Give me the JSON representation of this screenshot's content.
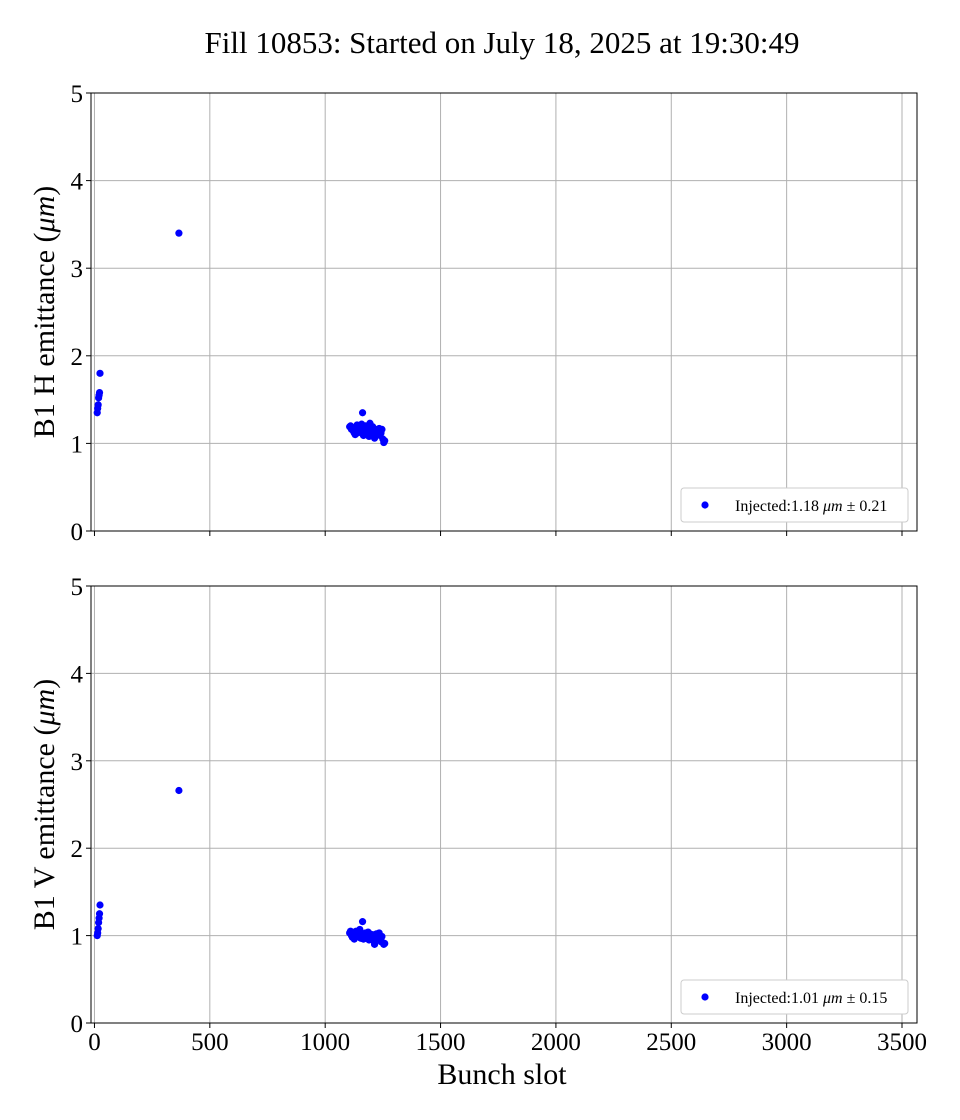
{
  "figure": {
    "title": "Fill 10853: Started on July 18, 2025 at 19:30:49",
    "xlabel": "Bunch slot"
  },
  "colors": {
    "marker": "#0000ff",
    "grid": "#b0b0b0",
    "axes": "#000000"
  },
  "chart_data": [
    {
      "type": "scatter",
      "title": "",
      "xlabel": "",
      "ylabel": "B1 H emittance (μm)",
      "xlim": [
        -15,
        3565
      ],
      "ylim": [
        0,
        5
      ],
      "xticks": [
        0,
        500,
        1000,
        1500,
        2000,
        2500,
        3000,
        3500
      ],
      "yticks": [
        0,
        1,
        2,
        3,
        4,
        5
      ],
      "grid": true,
      "legend_position": "lower-right",
      "series": [
        {
          "name": "Injected:1.18 μm ± 0.21",
          "x": [
            12,
            14,
            16,
            18,
            20,
            22,
            24,
            366,
            1106,
            1110,
            1114,
            1118,
            1122,
            1126,
            1130,
            1134,
            1138,
            1142,
            1146,
            1150,
            1154,
            1158,
            1162,
            1166,
            1170,
            1174,
            1178,
            1182,
            1186,
            1190,
            1194,
            1198,
            1202,
            1206,
            1210,
            1214,
            1218,
            1222,
            1226,
            1230,
            1234,
            1238,
            1242,
            1246,
            1250,
            1254,
            1258
          ],
          "y": [
            1.35,
            1.4,
            1.44,
            1.52,
            1.55,
            1.58,
            1.8,
            3.4,
            1.19,
            1.2,
            1.16,
            1.18,
            1.14,
            1.12,
            1.1,
            1.17,
            1.21,
            1.12,
            1.15,
            1.19,
            1.13,
            1.22,
            1.35,
            1.09,
            1.16,
            1.2,
            1.12,
            1.14,
            1.18,
            1.08,
            1.23,
            1.15,
            1.13,
            1.19,
            1.11,
            1.06,
            1.16,
            1.12,
            1.14,
            1.1,
            1.17,
            1.09,
            1.12,
            1.16,
            1.05,
            1.01,
            1.03
          ]
        }
      ]
    },
    {
      "type": "scatter",
      "title": "",
      "xlabel": "Bunch slot",
      "ylabel": "B1 V emittance (μm)",
      "xlim": [
        -15,
        3565
      ],
      "ylim": [
        0,
        5
      ],
      "xticks": [
        0,
        500,
        1000,
        1500,
        2000,
        2500,
        3000,
        3500
      ],
      "yticks": [
        0,
        1,
        2,
        3,
        4,
        5
      ],
      "grid": true,
      "legend_position": "lower-right",
      "series": [
        {
          "name": "Injected:1.01 μm ± 0.15",
          "x": [
            12,
            14,
            16,
            18,
            20,
            22,
            24,
            366,
            1106,
            1110,
            1114,
            1118,
            1122,
            1126,
            1130,
            1134,
            1138,
            1142,
            1146,
            1150,
            1154,
            1158,
            1162,
            1166,
            1170,
            1174,
            1178,
            1182,
            1186,
            1190,
            1194,
            1198,
            1202,
            1206,
            1210,
            1214,
            1218,
            1222,
            1226,
            1230,
            1234,
            1238,
            1242,
            1246,
            1250,
            1254,
            1258
          ],
          "y": [
            1.0,
            1.03,
            1.08,
            1.15,
            1.2,
            1.25,
            1.35,
            2.66,
            1.03,
            1.05,
            1.0,
            0.98,
            1.01,
            0.96,
            1.03,
            1.05,
            1.0,
            0.99,
            1.02,
            1.07,
            0.97,
            1.02,
            1.16,
            0.96,
            1.01,
            1.03,
            0.97,
            0.99,
            1.04,
            0.95,
            1.02,
            0.99,
            0.97,
            1.01,
            0.94,
            0.9,
            0.98,
            1.02,
            0.96,
            0.99,
            1.03,
            0.96,
            0.93,
            0.99,
            0.92,
            0.9,
            0.91
          ]
        }
      ]
    }
  ]
}
